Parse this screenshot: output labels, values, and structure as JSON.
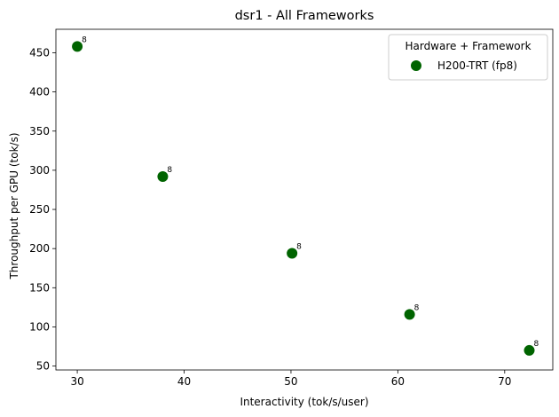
{
  "chart_data": {
    "type": "scatter",
    "title": "dsr1 - All Frameworks",
    "xlabel": "Interactivity (tok/s/user)",
    "ylabel": "Throughput per GPU (tok/s)",
    "xlim": [
      28,
      74.5
    ],
    "ylim": [
      45,
      480
    ],
    "xticks": [
      30,
      40,
      50,
      60,
      70
    ],
    "yticks": [
      50,
      100,
      150,
      200,
      250,
      300,
      350,
      400,
      450
    ],
    "grid": false,
    "legend": {
      "title": "Hardware + Framework",
      "placement": "top-right"
    },
    "series": [
      {
        "name": "H200-TRT (fp8)",
        "color": "#006400",
        "points": [
          {
            "x": 30.0,
            "y": 458,
            "label": "8"
          },
          {
            "x": 38.0,
            "y": 292,
            "label": "8"
          },
          {
            "x": 50.1,
            "y": 194,
            "label": "8"
          },
          {
            "x": 61.1,
            "y": 116,
            "label": "8"
          },
          {
            "x": 72.3,
            "y": 70,
            "label": "8"
          }
        ]
      }
    ]
  }
}
